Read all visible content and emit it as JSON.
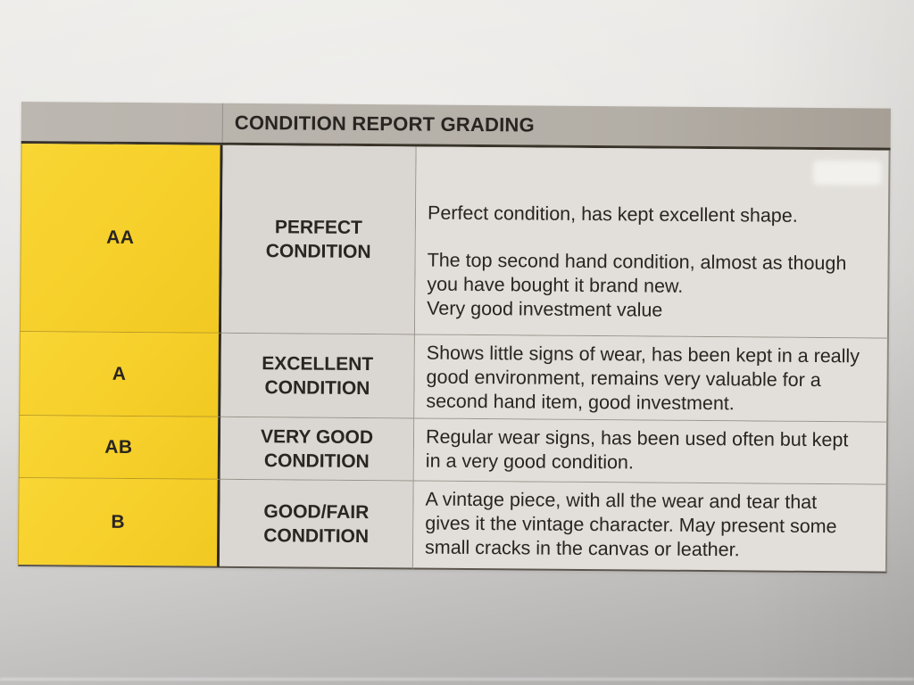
{
  "colors": {
    "accent_yellow": "#f6cf2a",
    "header_gray": "#b5b0a9",
    "label_gray": "#dad7d2",
    "desc_gray": "#e2dfda",
    "ink": "#292521"
  },
  "table": {
    "title": "CONDITION REPORT GRADING",
    "rows": [
      {
        "grade": "AA",
        "label": "PERFECT CONDITION",
        "paragraphs": [
          "Perfect condition, has kept excellent shape.",
          "The top second hand condition, almost as though you have bought it brand new.",
          "Very good investment value"
        ]
      },
      {
        "grade": "A",
        "label": "EXCELLENT CONDITION",
        "paragraphs": [
          "Shows little signs of wear, has been kept in a really good environment, remains very valuable for a second hand item, good investment."
        ]
      },
      {
        "grade": "AB",
        "label": "VERY GOOD CONDITION",
        "paragraphs": [
          "Regular wear signs, has been used often but kept in a very good condition."
        ]
      },
      {
        "grade": "B",
        "label": "GOOD/FAIR CONDITION",
        "paragraphs": [
          "A vintage piece, with all the wear and tear that gives it the vintage character. May present some small cracks in the canvas or leather."
        ]
      }
    ]
  }
}
